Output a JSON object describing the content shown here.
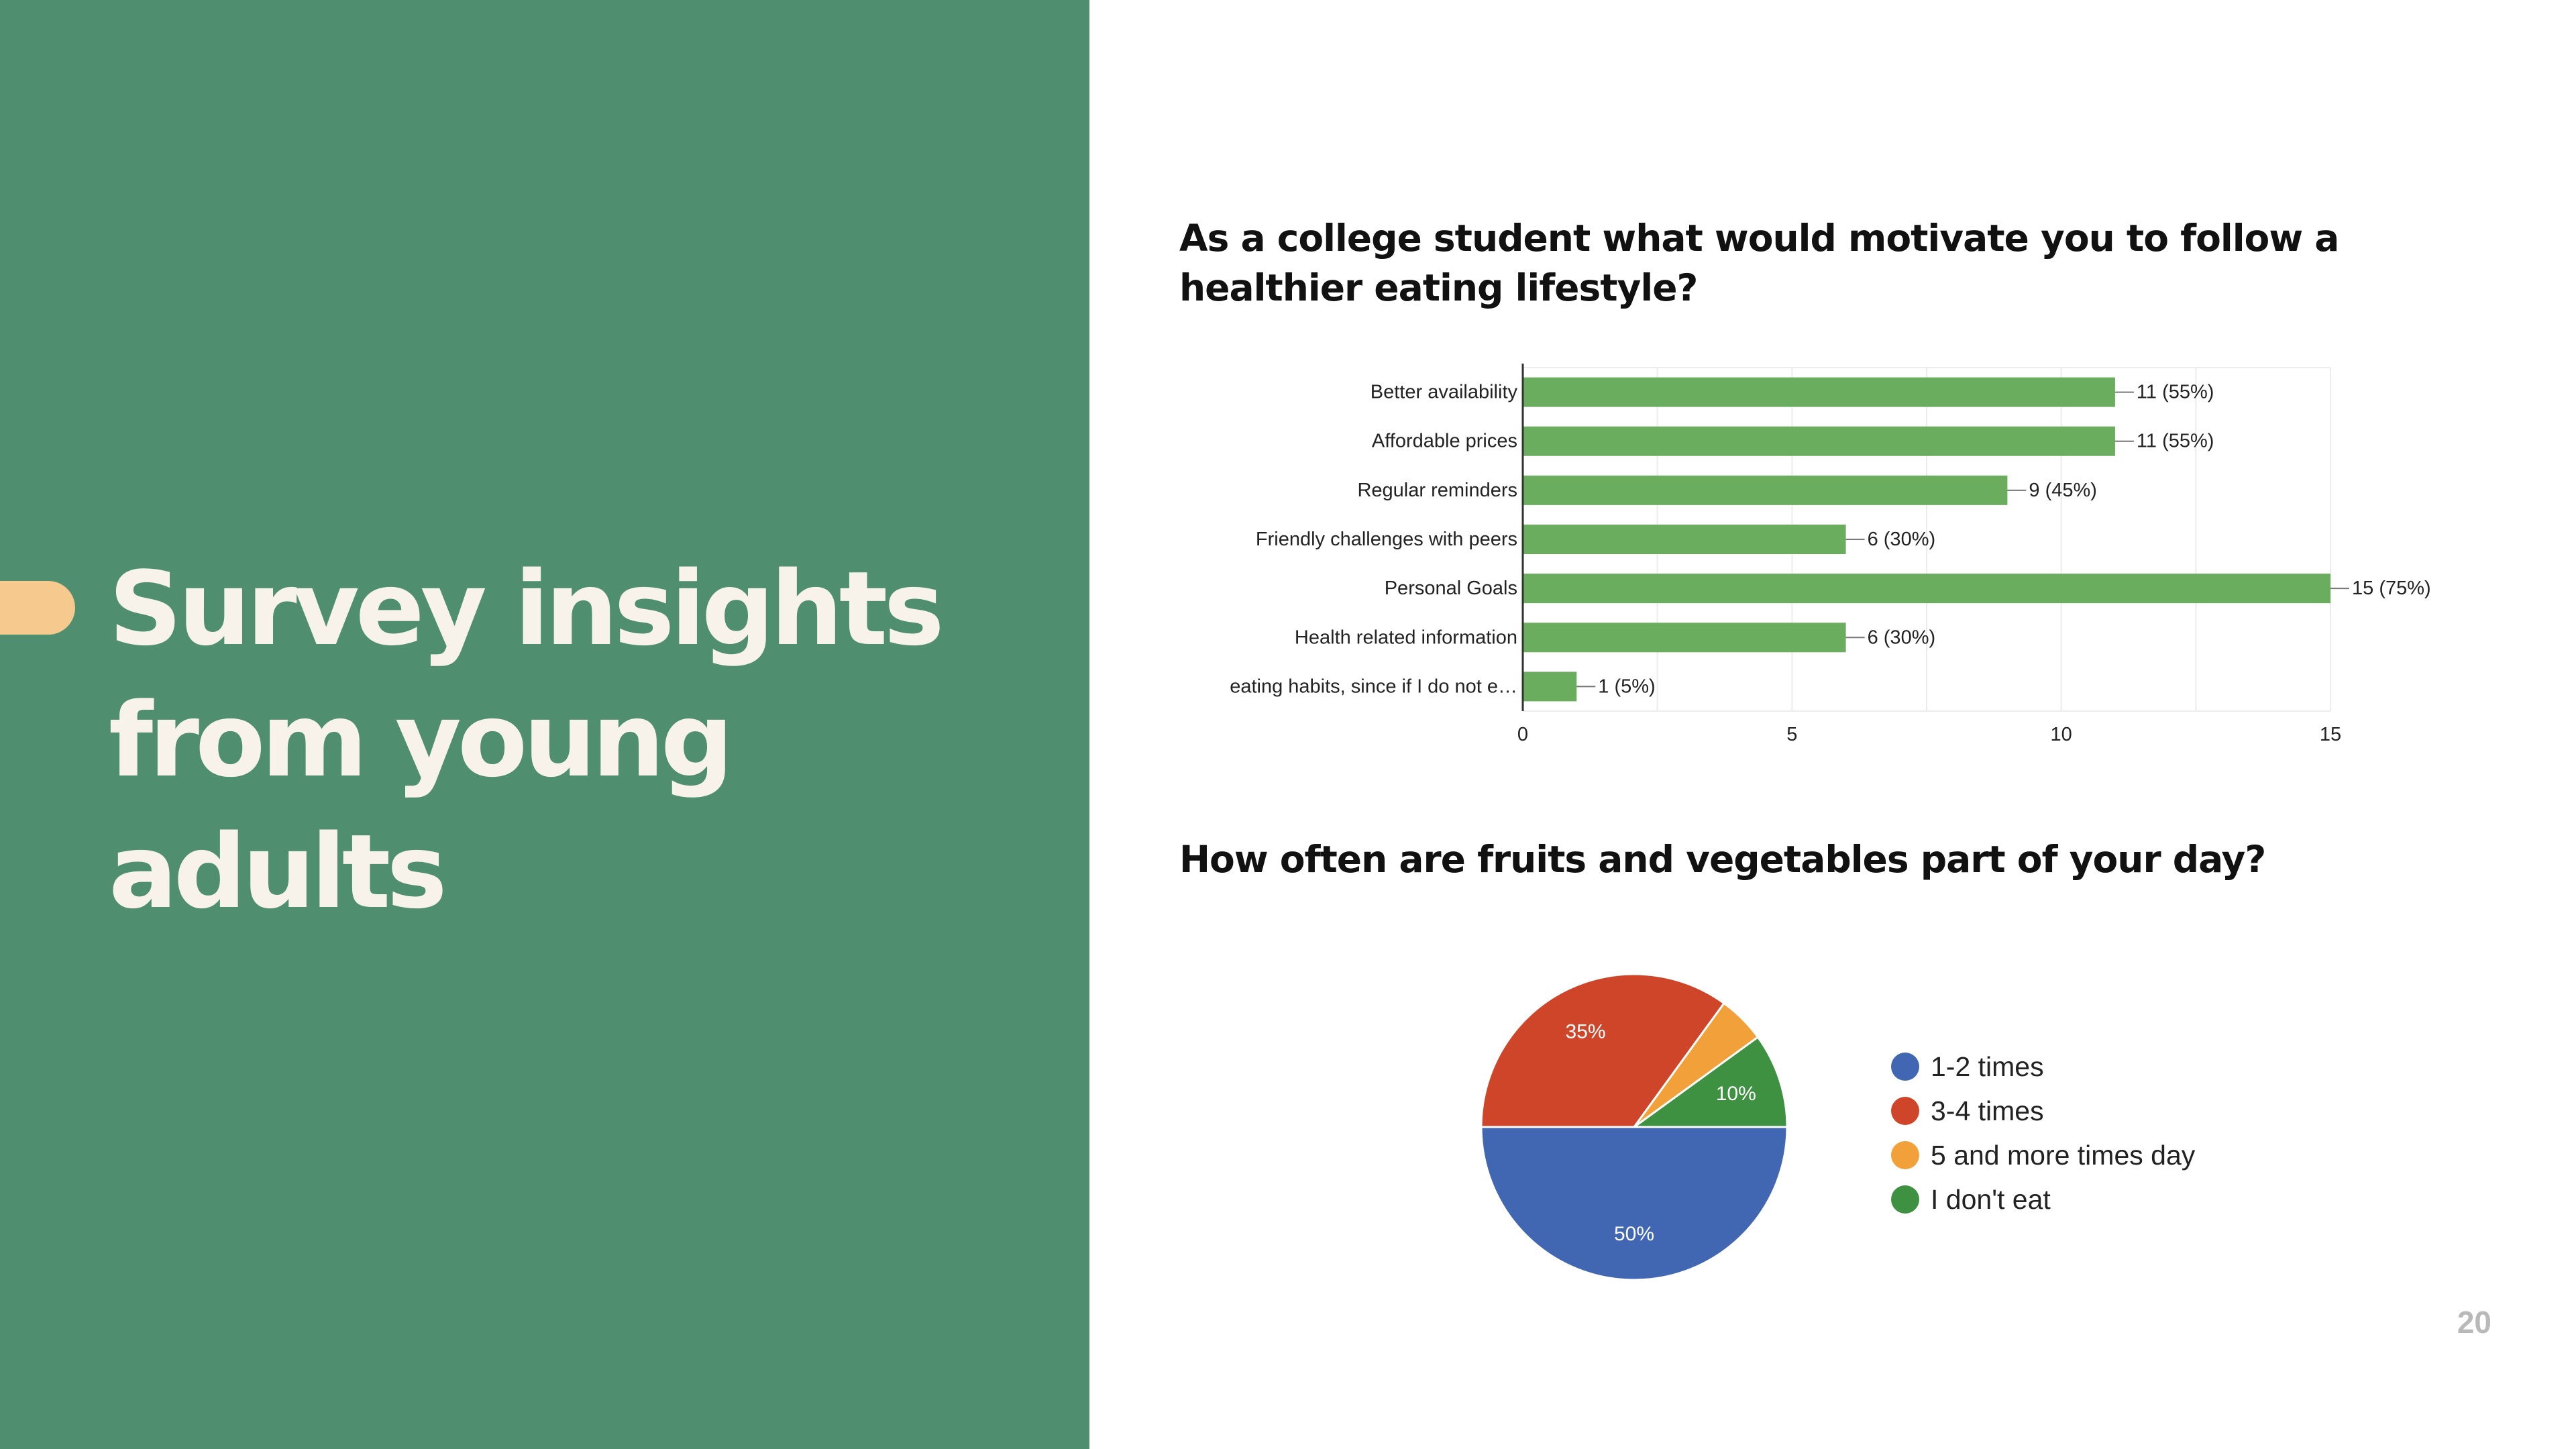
{
  "slide": {
    "title_lines": [
      "Survey insights",
      "from young",
      "adults"
    ],
    "page_number": "20"
  },
  "colors": {
    "panel": "#4f8f70",
    "accent": "#f6c98e",
    "bar": "#6aad5e"
  },
  "chart_data": [
    {
      "type": "bar",
      "orientation": "horizontal",
      "title": "As a college student what would motivate you to follow a healthier eating lifestyle?",
      "categories": [
        "Better availability",
        "Affordable prices",
        "Regular reminders",
        "Friendly challenges with peers",
        "Personal Goals",
        "Health related information",
        "eating habits, since if I do not e…"
      ],
      "values": [
        11,
        11,
        9,
        6,
        15,
        6,
        1
      ],
      "data_labels": [
        "11 (55%)",
        "11 (55%)",
        "9 (45%)",
        "6 (30%)",
        "15 (75%)",
        "6 (30%)",
        "1 (5%)"
      ],
      "xlim": [
        0,
        15
      ],
      "x_ticks": [
        0,
        5,
        10,
        15
      ],
      "grid": true,
      "color": "#6aad5e"
    },
    {
      "type": "pie",
      "title": "How often are fruits and vegetables part of your day?",
      "legend_position": "right",
      "slices": [
        {
          "label": "1-2 times",
          "value": 50,
          "display": "50%",
          "color": "#4267b2"
        },
        {
          "label": "3-4 times",
          "value": 35,
          "display": "35%",
          "color": "#cf4529"
        },
        {
          "label": "5 and more times day",
          "value": 5,
          "display": "",
          "color": "#f2a03a"
        },
        {
          "label": "I don't eat",
          "value": 10,
          "display": "10%",
          "color": "#3f9142"
        }
      ]
    }
  ]
}
